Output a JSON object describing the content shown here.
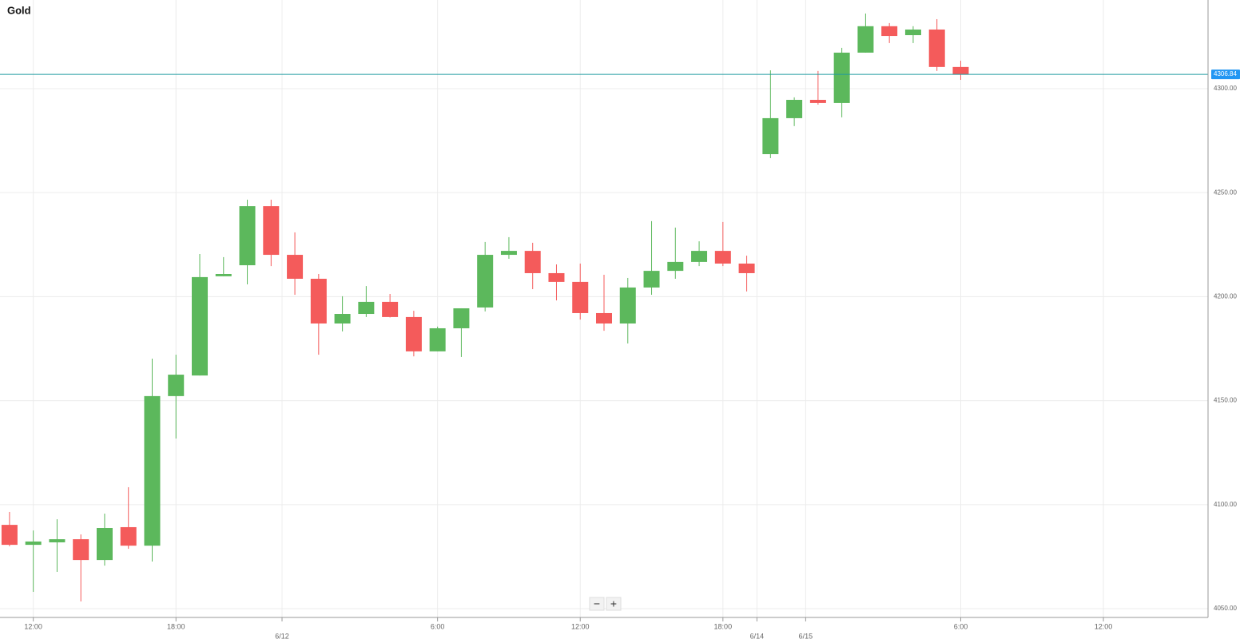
{
  "chart_data": {
    "type": "candlestick",
    "title": "Gold",
    "up_color": "#5cb85c",
    "down_color": "#f45b5b",
    "open": [
      4090.3,
      4080.7,
      4081.9,
      4083.4,
      4073.4,
      4089.2,
      4080.3,
      4152.2,
      4162.1,
      4209.8,
      4215.1,
      4243.5,
      4220.1,
      4208.6,
      4187.1,
      4191.7,
      4197.5,
      4190.2,
      4173.7,
      4184.8,
      4194.8,
      4220.1,
      4222.0,
      4211.3,
      4207.1,
      4192.1,
      4187.1,
      4204.4,
      4212.4,
      4216.7,
      4222.0,
      4215.9,
      4268.5,
      4285.8,
      4294.6,
      4293.1,
      4317.3,
      4330.0,
      4325.7,
      4328.4,
      4310.4
    ],
    "high": [
      4096.5,
      4087.6,
      4093.0,
      4085.7,
      4095.7,
      4108.4,
      4170.2,
      4172.1,
      4220.5,
      4219.0,
      4246.6,
      4246.6,
      4230.9,
      4210.9,
      4200.2,
      4205.1,
      4201.3,
      4193.2,
      4185.6,
      4194.4,
      4226.3,
      4228.6,
      4225.9,
      4215.5,
      4215.9,
      4210.5,
      4209.0,
      4236.3,
      4233.2,
      4226.6,
      4235.9,
      4219.7,
      4308.8,
      4295.8,
      4308.5,
      4319.6,
      4336.1,
      4331.5,
      4330.0,
      4333.4,
      4313.4
    ],
    "low": [
      4080.0,
      4058.1,
      4067.7,
      4053.5,
      4070.7,
      4078.8,
      4072.7,
      4131.8,
      4162.1,
      4209.8,
      4205.9,
      4214.7,
      4200.9,
      4172.1,
      4183.3,
      4190.2,
      4190.0,
      4171.3,
      4173.7,
      4171.0,
      4192.9,
      4218.2,
      4203.6,
      4198.2,
      4189.0,
      4183.6,
      4177.5,
      4200.9,
      4208.6,
      4214.7,
      4214.7,
      4202.5,
      4266.6,
      4282.0,
      4292.3,
      4286.2,
      4317.3,
      4321.9,
      4321.9,
      4308.5,
      4304.2
    ],
    "close": [
      4080.7,
      4082.3,
      4083.4,
      4073.4,
      4088.8,
      4080.3,
      4152.2,
      4162.5,
      4209.4,
      4210.9,
      4243.5,
      4220.1,
      4208.6,
      4187.1,
      4191.7,
      4197.5,
      4190.2,
      4173.7,
      4184.8,
      4194.4,
      4220.1,
      4222.0,
      4211.3,
      4207.1,
      4192.1,
      4187.1,
      4204.4,
      4212.4,
      4216.7,
      4222.0,
      4215.9,
      4211.3,
      4285.8,
      4294.6,
      4293.1,
      4317.3,
      4330.0,
      4325.3,
      4328.4,
      4310.4,
      4306.84
    ],
    "last_price": 4306.84,
    "ylim": [
      4045.8,
      4342.6
    ],
    "yticks": [
      {
        "value": 4050,
        "label": "4050.00"
      },
      {
        "value": 4100,
        "label": "4100.00"
      },
      {
        "value": 4150,
        "label": "4150.00"
      },
      {
        "value": 4200,
        "label": "4200.00"
      },
      {
        "value": 4250,
        "label": "4250.00"
      },
      {
        "value": 4300,
        "label": "4300.00"
      }
    ],
    "xlim": [
      -0.4,
      50.4
    ],
    "xticks": [
      {
        "value": 1,
        "label": "12:00"
      },
      {
        "value": 7,
        "label": "18:00"
      },
      {
        "value": 18,
        "label": "6:00"
      },
      {
        "value": 24,
        "label": "12:00"
      },
      {
        "value": 30,
        "label": "18:00"
      },
      {
        "value": 40,
        "label": "6:00"
      },
      {
        "value": 46,
        "label": "12:00"
      }
    ],
    "x_date_ticks": [
      {
        "value": 11.46,
        "label": "6/12"
      },
      {
        "value": 31.43,
        "label": "6/14"
      },
      {
        "value": 33.48,
        "label": "6/15"
      }
    ],
    "grid": true
  },
  "controls": {
    "zoom_out": "−",
    "zoom_in": "+"
  }
}
